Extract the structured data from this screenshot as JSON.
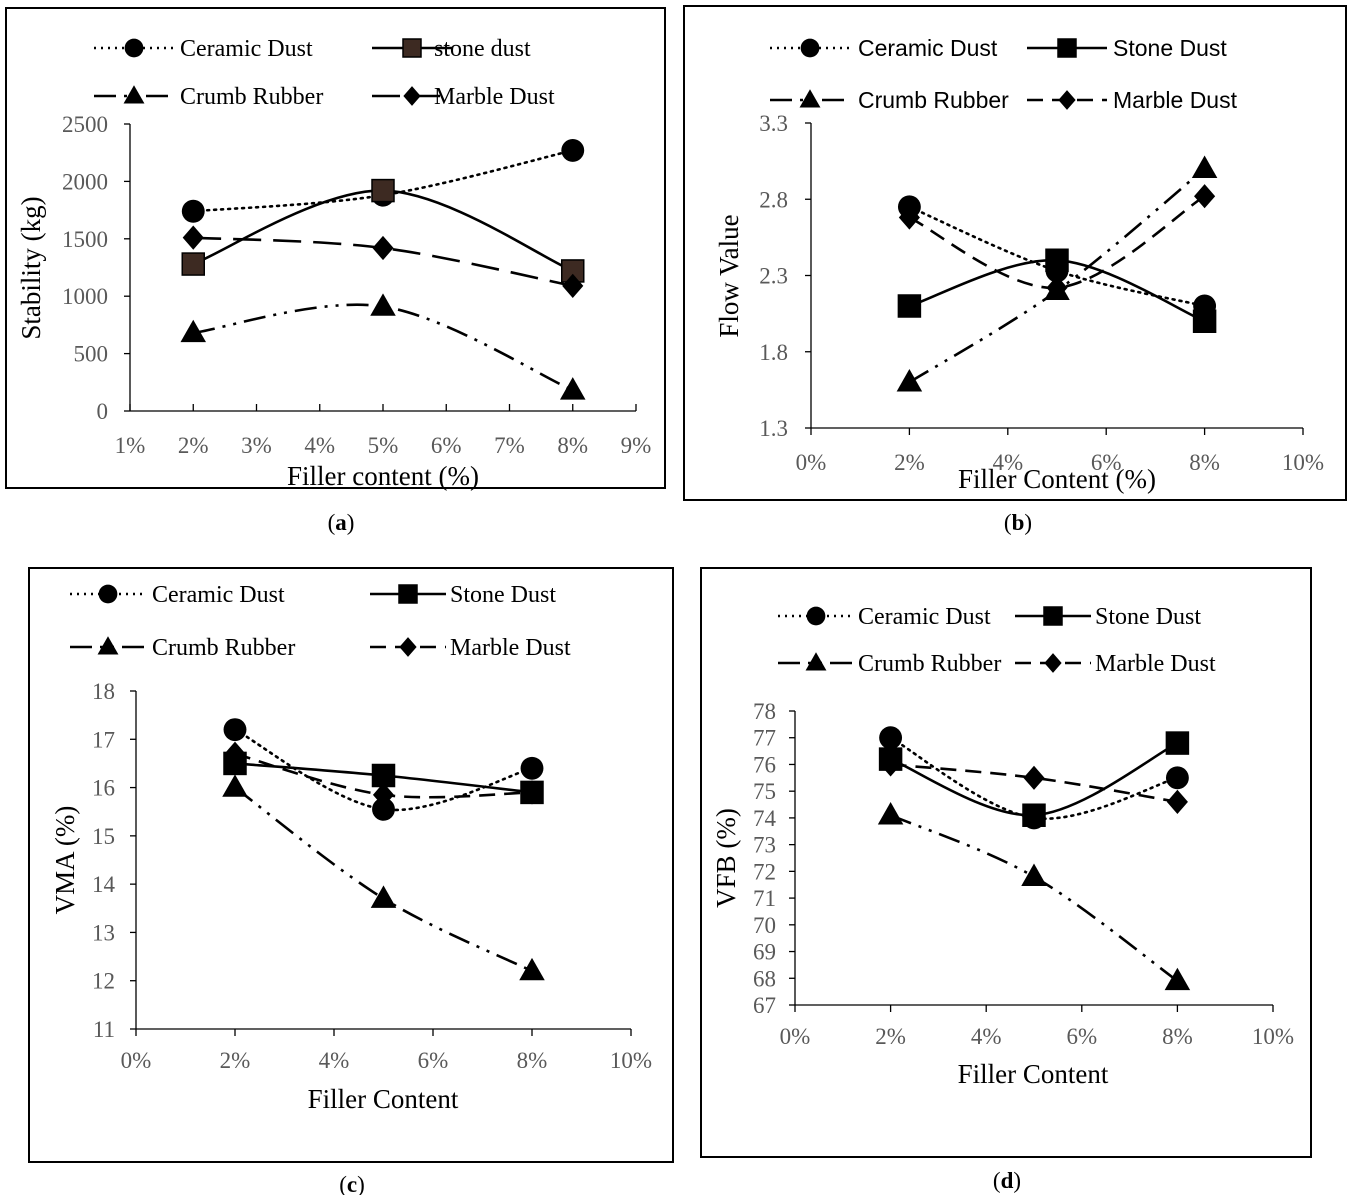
{
  "chart_data": [
    {
      "type": "line",
      "caption": "a",
      "xlabel": "Filler content (%)",
      "ylabel": "Stability (kg)",
      "x_ticks": [
        "1%",
        "2%",
        "3%",
        "4%",
        "5%",
        "6%",
        "7%",
        "8%",
        "9%"
      ],
      "xlim": [
        1,
        9
      ],
      "ylim": [
        0,
        2500
      ],
      "y_ticks": [
        "0",
        "500",
        "1000",
        "1500",
        "2000",
        "2500"
      ],
      "legend_position": "top",
      "series": [
        {
          "name": "Ceramic Dust",
          "x": [
            2,
            5,
            8
          ],
          "values": [
            1740,
            1880,
            2270
          ],
          "marker": "circle",
          "dash": "dotted"
        },
        {
          "name": "stone dust",
          "x": [
            2,
            5,
            8
          ],
          "values": [
            1280,
            1920,
            1220
          ],
          "marker": "square",
          "dash": "solid",
          "marker_color": "#3d2a22"
        },
        {
          "name": "Crumb Rubber",
          "x": [
            2,
            5,
            8
          ],
          "values": [
            680,
            910,
            180
          ],
          "marker": "triangle",
          "dash": "dashdotdot"
        },
        {
          "name": "Marble Dust",
          "x": [
            2,
            5,
            8
          ],
          "values": [
            1510,
            1420,
            1090
          ],
          "marker": "diamond",
          "dash": "longdash"
        }
      ]
    },
    {
      "type": "line",
      "caption": "b",
      "xlabel": "Filler Content (%)",
      "ylabel": "Flow Value",
      "x_ticks": [
        "0%",
        "2%",
        "4%",
        "6%",
        "8%",
        "10%"
      ],
      "xlim": [
        0,
        10
      ],
      "ylim": [
        1.3,
        3.3
      ],
      "y_ticks": [
        "1.3",
        "1.8",
        "2.3",
        "2.8",
        "3.3"
      ],
      "legend_position": "top",
      "series": [
        {
          "name": "Ceramic Dust",
          "x": [
            2,
            5,
            8
          ],
          "values": [
            2.75,
            2.33,
            2.1
          ],
          "marker": "circle",
          "dash": "dotted"
        },
        {
          "name": "Stone Dust",
          "x": [
            2,
            5,
            8
          ],
          "values": [
            2.1,
            2.4,
            2.0
          ],
          "marker": "square",
          "dash": "solid"
        },
        {
          "name": "Crumb Rubber",
          "x": [
            2,
            5,
            8
          ],
          "values": [
            1.6,
            2.2,
            3.0
          ],
          "marker": "triangle",
          "dash": "dashdotdot"
        },
        {
          "name": "Marble Dust",
          "x": [
            2,
            5,
            8
          ],
          "values": [
            2.68,
            2.22,
            2.82
          ],
          "marker": "diamond",
          "dash": "dashed"
        }
      ]
    },
    {
      "type": "line",
      "caption": "c",
      "xlabel": "Filler Content",
      "ylabel": "VMA (%)",
      "x_ticks": [
        "0%",
        "2%",
        "4%",
        "6%",
        "8%",
        "10%"
      ],
      "xlim": [
        0,
        10
      ],
      "ylim": [
        11,
        18
      ],
      "y_ticks": [
        "11",
        "12",
        "13",
        "14",
        "15",
        "16",
        "17",
        "18"
      ],
      "legend_position": "top",
      "series": [
        {
          "name": "Ceramic Dust",
          "x": [
            2,
            5,
            8
          ],
          "values": [
            17.2,
            15.55,
            16.4
          ],
          "marker": "circle",
          "dash": "dotted"
        },
        {
          "name": "Stone Dust",
          "x": [
            2,
            5,
            8
          ],
          "values": [
            16.5,
            16.25,
            15.9
          ],
          "marker": "square",
          "dash": "solid"
        },
        {
          "name": "Crumb Rubber",
          "x": [
            2,
            5,
            8
          ],
          "values": [
            16.0,
            13.7,
            12.2
          ],
          "marker": "triangle",
          "dash": "dashdotdot"
        },
        {
          "name": "Marble Dust",
          "x": [
            2,
            5,
            8
          ],
          "values": [
            16.7,
            15.85,
            15.9
          ],
          "marker": "diamond",
          "dash": "dashed"
        }
      ]
    },
    {
      "type": "line",
      "caption": "d",
      "xlabel": "Filler Content",
      "ylabel": "VFB (%)",
      "x_ticks": [
        "0%",
        "2%",
        "4%",
        "6%",
        "8%",
        "10%"
      ],
      "xlim": [
        0,
        10
      ],
      "ylim": [
        67,
        78
      ],
      "y_ticks": [
        "67",
        "68",
        "69",
        "70",
        "71",
        "72",
        "73",
        "74",
        "75",
        "76",
        "77",
        "78"
      ],
      "legend_position": "top",
      "series": [
        {
          "name": "Ceramic Dust",
          "x": [
            2,
            5,
            8
          ],
          "values": [
            77.0,
            74.0,
            75.5
          ],
          "marker": "circle",
          "dash": "dotted"
        },
        {
          "name": "Stone Dust",
          "x": [
            2,
            5,
            8
          ],
          "values": [
            76.2,
            74.1,
            76.8
          ],
          "marker": "square",
          "dash": "solid"
        },
        {
          "name": "Crumb Rubber",
          "x": [
            2,
            5,
            8
          ],
          "values": [
            74.1,
            71.8,
            67.9
          ],
          "marker": "triangle",
          "dash": "dashdotdot"
        },
        {
          "name": "Marble Dust",
          "x": [
            2,
            5,
            8
          ],
          "values": [
            76.0,
            75.5,
            74.6
          ],
          "marker": "diamond",
          "dash": "dashed"
        }
      ]
    }
  ]
}
